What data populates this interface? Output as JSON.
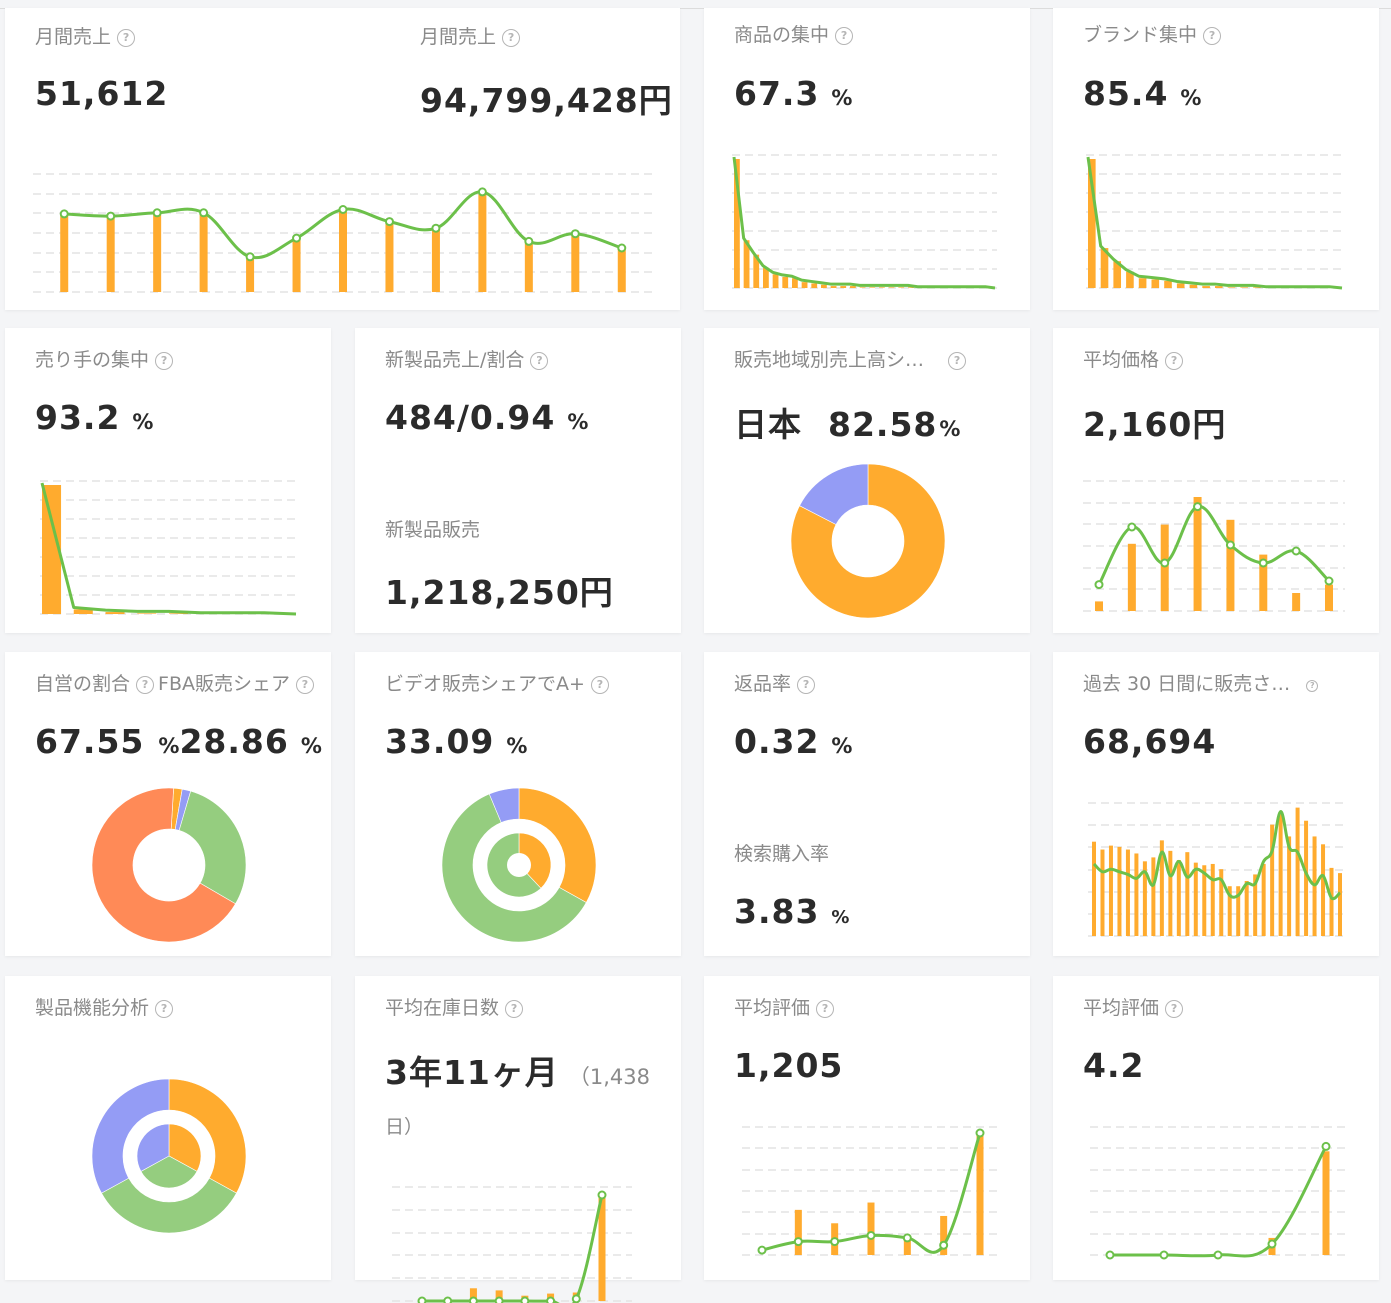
{
  "cards": {
    "monthly_units": {
      "title": "月間売上",
      "value": "51,612"
    },
    "monthly_revenue": {
      "title": "月間売上",
      "value": "94,799,428円"
    },
    "product_concentration": {
      "title": "商品の集中",
      "value": "67.3",
      "unit": "%"
    },
    "brand_concentration": {
      "title": "ブランド集中",
      "value": "85.4",
      "unit": "%"
    },
    "seller_concentration": {
      "title": "売り手の集中",
      "value": "93.2",
      "unit": "%"
    },
    "new_product": {
      "title": "新製品売上/割合",
      "value": "484/0.94",
      "unit": "%",
      "sub_title": "新製品販売",
      "sub_value": "1,218,250円"
    },
    "region_share": {
      "title": "販売地域別売上高シ…",
      "region": "日本",
      "value": "82.58",
      "unit": "%"
    },
    "avg_price": {
      "title": "平均価格",
      "value": "2,160円"
    },
    "self_fba": {
      "title1": "自営の割合",
      "title2": "FBA販売シェア",
      "value1": "67.55",
      "unit1": "%",
      "value2": "28.86",
      "unit2": "%"
    },
    "video_share": {
      "title": "ビデオ販売シェアでA+",
      "value": "33.09",
      "unit": "%"
    },
    "return_rate": {
      "title": "返品率",
      "value": "0.32",
      "unit": "%",
      "sub_title": "検索購入率",
      "sub_value": "3.83",
      "sub_unit": "%"
    },
    "sold_30d": {
      "title": "過去 30 日間に販売さ…",
      "value": "68,694"
    },
    "feature_analysis": {
      "title": "製品機能分析"
    },
    "avg_stock_days": {
      "title": "平均在庫日数",
      "value": "3年11ヶ月",
      "paren_open": "（1,438",
      "paren_close": "日）"
    },
    "avg_reviews": {
      "title": "平均評価",
      "value": "1,205"
    },
    "avg_rating": {
      "title": "平均評価",
      "value": "4.2"
    }
  },
  "colors": {
    "orange": "#ffab2e",
    "green": "#6cc04a",
    "purple": "#949cf5",
    "lightgreen": "#95cd7f",
    "coral": "#ff8a57",
    "grid": "#e4e4e4"
  },
  "chart_data": [
    {
      "type": "bar",
      "name": "monthly_units",
      "bars": [
        70,
        68,
        71,
        71,
        31,
        48,
        73,
        63,
        57,
        89,
        45,
        52,
        39
      ],
      "line": [
        71,
        69,
        72,
        72,
        32,
        49,
        75,
        64,
        58,
        91,
        46,
        53,
        40
      ],
      "ylim": [
        0,
        100
      ]
    },
    {
      "type": "area",
      "name": "product_concentration",
      "values": [
        100,
        38,
        27,
        17,
        12,
        10,
        9,
        6,
        5,
        4,
        3,
        3,
        3,
        2,
        2,
        2,
        2,
        2,
        2,
        1,
        1,
        1,
        1,
        1,
        1,
        1,
        1,
        0
      ],
      "ylim": [
        0,
        100
      ]
    },
    {
      "type": "area",
      "name": "brand_concentration",
      "values": [
        100,
        32,
        22,
        14,
        9,
        8,
        7,
        5,
        4,
        3,
        3,
        2,
        2,
        2,
        1,
        1,
        1,
        1,
        1,
        1,
        0
      ],
      "ylim": [
        0,
        100
      ]
    },
    {
      "type": "area",
      "name": "seller_concentration",
      "values": [
        100,
        5,
        3,
        2,
        2,
        1,
        1,
        1,
        0
      ],
      "ylim": [
        0,
        100
      ]
    },
    {
      "type": "pie",
      "name": "region_share",
      "slices": [
        {
          "label": "日本",
          "value": 82.58,
          "color": "orange"
        },
        {
          "label": "other",
          "value": 17.42,
          "color": "purple"
        }
      ]
    },
    {
      "type": "bar",
      "name": "avg_price",
      "bars": [
        8,
        56,
        72,
        95,
        76,
        47,
        15,
        22
      ],
      "line": [
        22,
        70,
        40,
        87,
        55,
        40,
        50,
        25
      ],
      "ylim": [
        0,
        100
      ]
    },
    {
      "type": "pie",
      "name": "self_fba",
      "slices": [
        {
          "value": 67.55,
          "color": "coral"
        },
        {
          "value": 28.86,
          "color": "lightgreen"
        },
        {
          "value": 1.8,
          "color": "purple"
        },
        {
          "value": 1.79,
          "color": "orange"
        }
      ]
    },
    {
      "type": "pie",
      "name": "video_share",
      "outer": [
        {
          "value": 33.09,
          "color": "orange"
        },
        {
          "value": 60.6,
          "color": "lightgreen"
        },
        {
          "value": 6.31,
          "color": "purple"
        }
      ],
      "inner": [
        {
          "value": 38,
          "color": "orange"
        },
        {
          "value": 62,
          "color": "lightgreen"
        }
      ]
    },
    {
      "type": "bar",
      "name": "sold_30d",
      "bars": [
        72,
        66,
        69,
        68,
        66,
        63,
        57,
        60,
        73,
        65,
        58,
        64,
        56,
        54,
        55,
        51,
        38,
        38,
        42,
        47,
        55,
        85,
        94,
        76,
        98,
        88,
        76,
        70,
        52,
        48
      ],
      "line": [
        55,
        49,
        51,
        49,
        47,
        44,
        49,
        39,
        64,
        46,
        57,
        45,
        51,
        48,
        43,
        43,
        31,
        31,
        40,
        40,
        57,
        65,
        95,
        68,
        64,
        48,
        39,
        46,
        29,
        33
      ],
      "ylim": [
        0,
        100
      ]
    },
    {
      "type": "pie",
      "name": "feature_analysis",
      "outer": [
        {
          "value": 33,
          "color": "orange"
        },
        {
          "value": 34,
          "color": "lightgreen"
        },
        {
          "value": 33,
          "color": "purple"
        }
      ],
      "inner": [
        {
          "value": 33,
          "color": "orange"
        },
        {
          "value": 34,
          "color": "lightgreen"
        },
        {
          "value": 33,
          "color": "purple"
        }
      ]
    },
    {
      "type": "bar",
      "name": "avg_stock_days",
      "bars": [
        0,
        0,
        12,
        10,
        5,
        7,
        8,
        100
      ],
      "line": [
        0,
        0,
        0,
        0,
        0,
        0,
        2,
        100
      ],
      "ylim": [
        0,
        100
      ]
    },
    {
      "type": "bar",
      "name": "avg_reviews",
      "bars": [
        0,
        37,
        26,
        43,
        14,
        32,
        100
      ],
      "line": [
        4,
        11,
        11,
        16,
        14,
        8,
        100
      ],
      "ylim": [
        0,
        100
      ]
    },
    {
      "type": "bar",
      "name": "avg_rating",
      "bars": [
        0,
        0,
        0,
        14,
        85
      ],
      "line": [
        0,
        0,
        0,
        9,
        89
      ],
      "ylim": [
        0,
        100
      ]
    }
  ]
}
